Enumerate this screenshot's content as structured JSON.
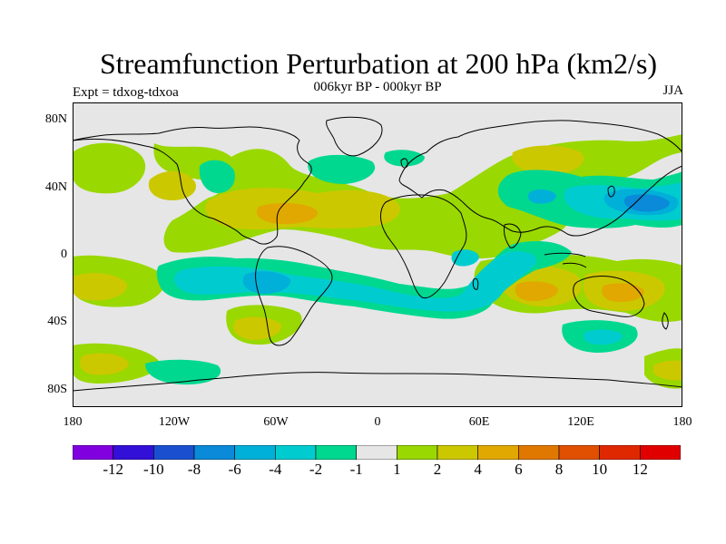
{
  "title": "Streamfunction Perturbation at 200 hPa (km2/s)",
  "subtitle": "006kyr BP - 000kyr BP",
  "left_label": "Expt = tdxog-tdxoa",
  "right_label": "JJA",
  "map": {
    "projection": "cylindrical-equidistant",
    "lat_labels": [
      "80N",
      "40N",
      "0",
      "40S",
      "80S"
    ],
    "lon_labels": [
      "180",
      "120W",
      "60W",
      "0",
      "60E",
      "120E",
      "180"
    ],
    "background_color": "#e6e6e6"
  },
  "chart_data": {
    "type": "filled-contour-map",
    "variable": "Streamfunction perturbation at 200 hPa",
    "units": "km2/s",
    "season": "JJA",
    "lat_range": [
      -90,
      90
    ],
    "lon_range": [
      -180,
      180
    ],
    "contour_levels": [
      -12,
      -10,
      -8,
      -6,
      -4,
      -2,
      -1,
      1,
      2,
      4,
      6,
      8,
      10,
      12
    ],
    "colorbar_labels": [
      "-12",
      "-10",
      "-8",
      "-6",
      "-4",
      "-2",
      "-1",
      "1",
      "2",
      "4",
      "6",
      "8",
      "10",
      "12"
    ],
    "colors": [
      "#8000e0",
      "#3310d8",
      "#1a4fd0",
      "#0a8ad8",
      "#00b0d8",
      "#00ccd0",
      "#00d890",
      "#e6e6e6",
      "#99d800",
      "#ccc800",
      "#e0a800",
      "#e07800",
      "#e05000",
      "#e02800",
      "#e00000"
    ],
    "features": [
      {
        "name": "North Atlantic high",
        "lon": -55,
        "lat": 24,
        "value": 5
      },
      {
        "name": "Subtropical Atlantic/Africa high",
        "lon": 5,
        "lat": 28,
        "value": 3
      },
      {
        "name": "North Pacific low",
        "lon": 155,
        "lat": 25,
        "value": -5
      },
      {
        "name": "Indian Ocean high",
        "lon": 93,
        "lat": -22,
        "value": 5
      },
      {
        "name": "Australian high",
        "lon": 150,
        "lat": -24,
        "value": 5
      },
      {
        "name": "South Atlantic low",
        "lon": -65,
        "lat": -17,
        "value": -5
      },
      {
        "name": "Central Asia high",
        "lon": 100,
        "lat": 55,
        "value": 3
      },
      {
        "name": "Southern Ocean high",
        "lon": -160,
        "lat": -65,
        "value": 3
      }
    ]
  }
}
